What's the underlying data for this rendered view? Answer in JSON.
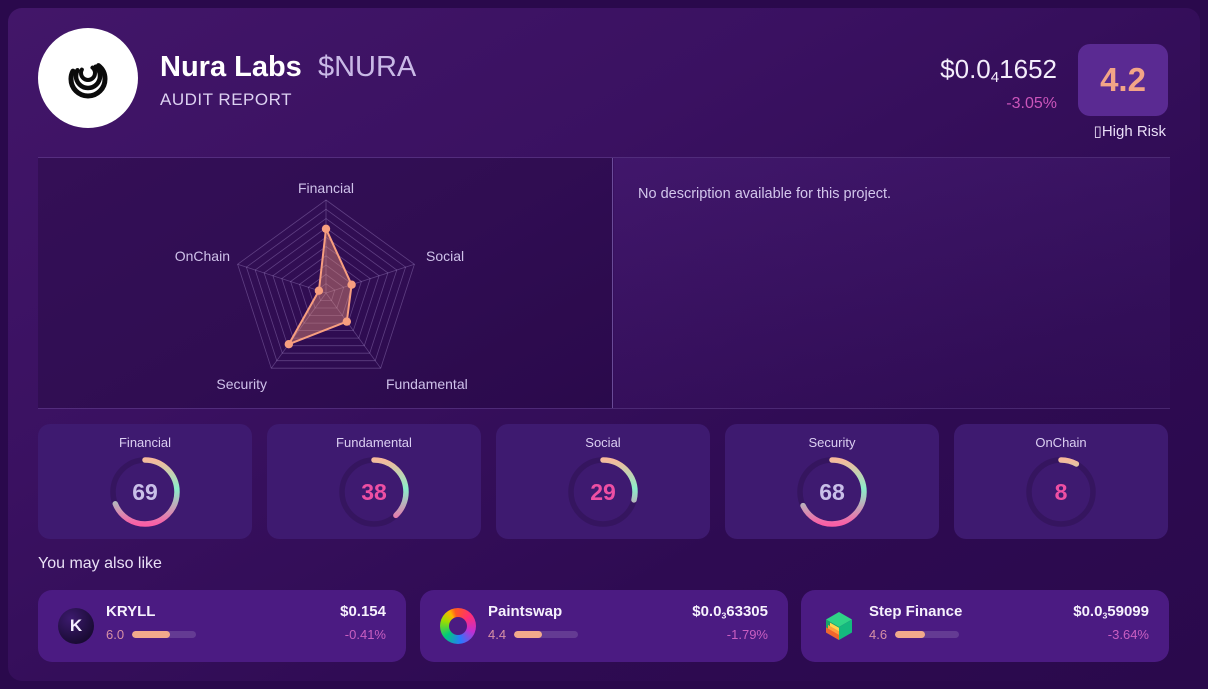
{
  "header": {
    "project_name": "Nura Labs",
    "ticker": "$NURA",
    "subtitle": "AUDIT REPORT",
    "price": {
      "prefix": "$0.0",
      "sub": "4",
      "rest": "1652"
    },
    "change": "-3.05%",
    "score": "4.2",
    "risk_glyph": "▯",
    "risk_label": "High Risk"
  },
  "description_panel": {
    "text": "No description available for this project."
  },
  "chart_data": {
    "type": "radar",
    "categories": [
      "Financial",
      "Social",
      "Fundamental",
      "Security",
      "OnChain"
    ],
    "values": [
      69,
      29,
      38,
      68,
      8
    ],
    "max": 100,
    "rings": 10,
    "grid": true,
    "legend_position": "none",
    "title": ""
  },
  "gauges": [
    {
      "label": "Financial",
      "value": 69,
      "value_color": "#c9bfe8"
    },
    {
      "label": "Fundamental",
      "value": 38,
      "value_color": "#ee4fa3"
    },
    {
      "label": "Social",
      "value": 29,
      "value_color": "#ee4fa3"
    },
    {
      "label": "Security",
      "value": 68,
      "value_color": "#c9bfe8"
    },
    {
      "label": "OnChain",
      "value": 8,
      "value_color": "#ee4fa3"
    }
  ],
  "suggestions": {
    "heading": "You may also like",
    "items": [
      {
        "name": "KRYLL",
        "icon": "kryll-logo",
        "rating": "6.0",
        "rating_value": 6.0,
        "price": {
          "prefix": "$0.154",
          "sub": "",
          "rest": ""
        },
        "change": "-0.41%"
      },
      {
        "name": "Paintswap",
        "icon": "paintswap-logo",
        "rating": "4.4",
        "rating_value": 4.4,
        "price": {
          "prefix": "$0.0",
          "sub": "3",
          "rest": "63305"
        },
        "change": "-1.79%"
      },
      {
        "name": "Step Finance",
        "icon": "step-finance-logo",
        "rating": "4.6",
        "rating_value": 4.6,
        "price": {
          "prefix": "$0.0",
          "sub": "3",
          "rest": "59099"
        },
        "change": "-3.64%"
      }
    ]
  },
  "colors": {
    "accent_salmon": "#f79e7f",
    "accent_pink": "#fa5fa6",
    "accent_mint": "#8beecb",
    "negative_change": "#cb55bb",
    "score_badge_bg": "#5a2a92",
    "score_text": "#f3a487",
    "card_bg": "#4b1b82",
    "gauge_card_bg": "#3e1a70"
  }
}
